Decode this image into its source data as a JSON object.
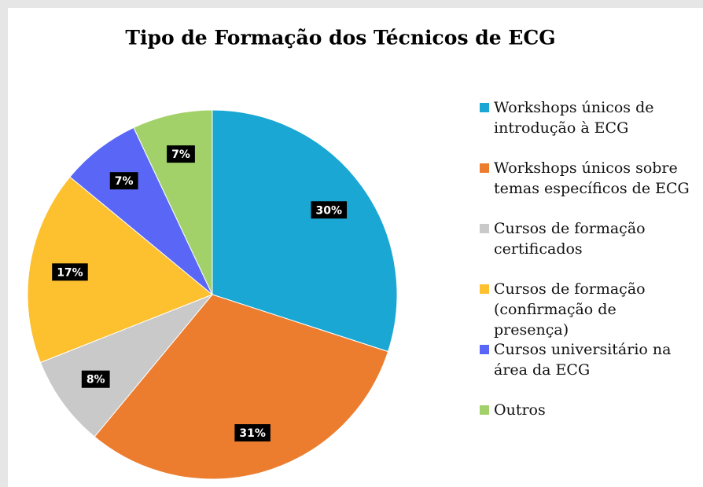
{
  "chart_data": {
    "type": "pie",
    "title": "Tipo de Formação dos Técnicos de ECG",
    "categories": [
      "Workshops únicos de introdução à ECG",
      "Workshops únicos sobre temas específicos de ECG",
      "Cursos de formação certificados",
      "Cursos de formação (confirmação de presença)",
      "Cursos universitário na área da ECG",
      "Outros"
    ],
    "values": [
      30,
      31,
      8,
      17,
      7,
      7
    ],
    "value_labels": [
      "30%",
      "31%",
      "8%",
      "17%",
      "7%",
      "7%"
    ],
    "colors": [
      "#1ba7d3",
      "#ec7d2f",
      "#c9c9c9",
      "#fdc02f",
      "#5a67f6",
      "#a2d16a"
    ],
    "legend": "right"
  }
}
